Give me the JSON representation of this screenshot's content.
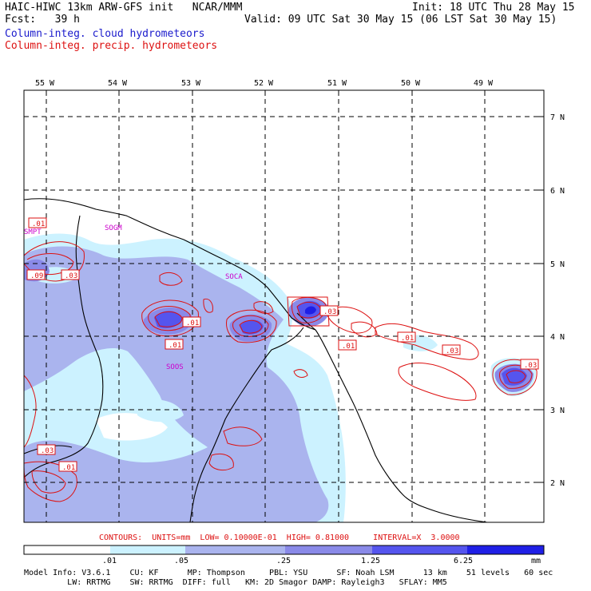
{
  "header": {
    "title": "HAIC-HIWC 13km ARW-GFS init   NCAR/MMM",
    "init": "Init: 18 UTC Thu 28 May 15",
    "fcst": "Fcst:   39 h",
    "valid": "Valid: 09 UTC Sat 30 May 15 (06 LST Sat 30 May 15)",
    "field_cloud": "Column-integ. cloud hydrometeors",
    "field_precip": "Column-integ. precip. hydrometeors",
    "cloud_color": "#1a1acc",
    "precip_color": "#dd1111"
  },
  "map": {
    "lon_labels": [
      "55 W",
      "54 W",
      "53 W",
      "52 W",
      "51 W",
      "50 W",
      "49 W"
    ],
    "lat_labels": [
      "7 N",
      "6 N",
      "5 N",
      "4 N",
      "3 N",
      "2 N"
    ],
    "station_labels": [
      "SMPT",
      "SOGM",
      "SOCA",
      "SOOS"
    ],
    "contour_labels": [
      ".01",
      ".09",
      ".03",
      ".01",
      ".01",
      ".03",
      ".01",
      ".01",
      ".03",
      ".03",
      ".01"
    ],
    "station_color": "#cc00cc"
  },
  "contour_info": {
    "text": "CONTOURS:  UNITS=mm  LOW= 0.10000E-01  HIGH= 0.81000     INTERVAL=X  3.0000",
    "color": "#dd1111"
  },
  "colorbar": {
    "ticks": [
      ".01",
      ".05",
      ".25",
      "1.25",
      "6.25"
    ],
    "units": "mm",
    "colors": [
      "#ffffff",
      "#ccf2ff",
      "#aab4ee",
      "#8a8ae8",
      "#5555ee",
      "#1f1fe6"
    ]
  },
  "model_info": {
    "line1": "Model Info: V3.6.1    CU: KF      MP: Thompson     PBL: YSU      SF: Noah LSM      13 km    51 levels   60 sec",
    "line2": "         LW: RRTMG    SW: RRTMG  DIFF: full   KM: 2D Smagor DAMP: Rayleigh3   SFLAY: MM5"
  }
}
